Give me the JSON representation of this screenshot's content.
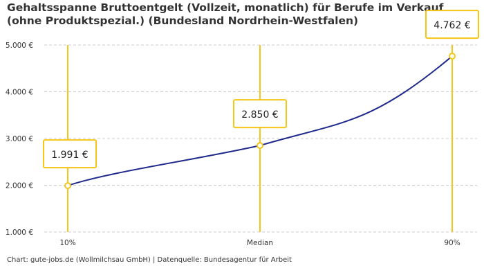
{
  "title": "Gehaltsspanne Bruttoentgelt (Vollzeit, monatlich) für Berufe im Verkauf (ohne Produktspezial.) (Bundesland Nordrhein-Westfalen)",
  "footer": "Chart: gute-jobs.de (Wollmilchsau GmbH) | Datenquelle: Bundesagentur für Arbeit",
  "chart_data": {
    "type": "line",
    "categories": [
      "10%",
      "Median",
      "90%"
    ],
    "values": [
      1991,
      2850,
      4762
    ],
    "value_labels": [
      "1.991 €",
      "2.850 €",
      "4.762 €"
    ],
    "ylim": [
      1000,
      5000
    ],
    "yticks": [
      1000,
      2000,
      3000,
      4000,
      5000
    ],
    "ytick_labels": [
      "1.000 €",
      "2.000 €",
      "3.000 €",
      "4.000 €",
      "5.000 €"
    ],
    "grid": true,
    "colors": {
      "line": "#1f2a8c",
      "marker": "#f5c518",
      "grid": "#cccccc"
    }
  }
}
